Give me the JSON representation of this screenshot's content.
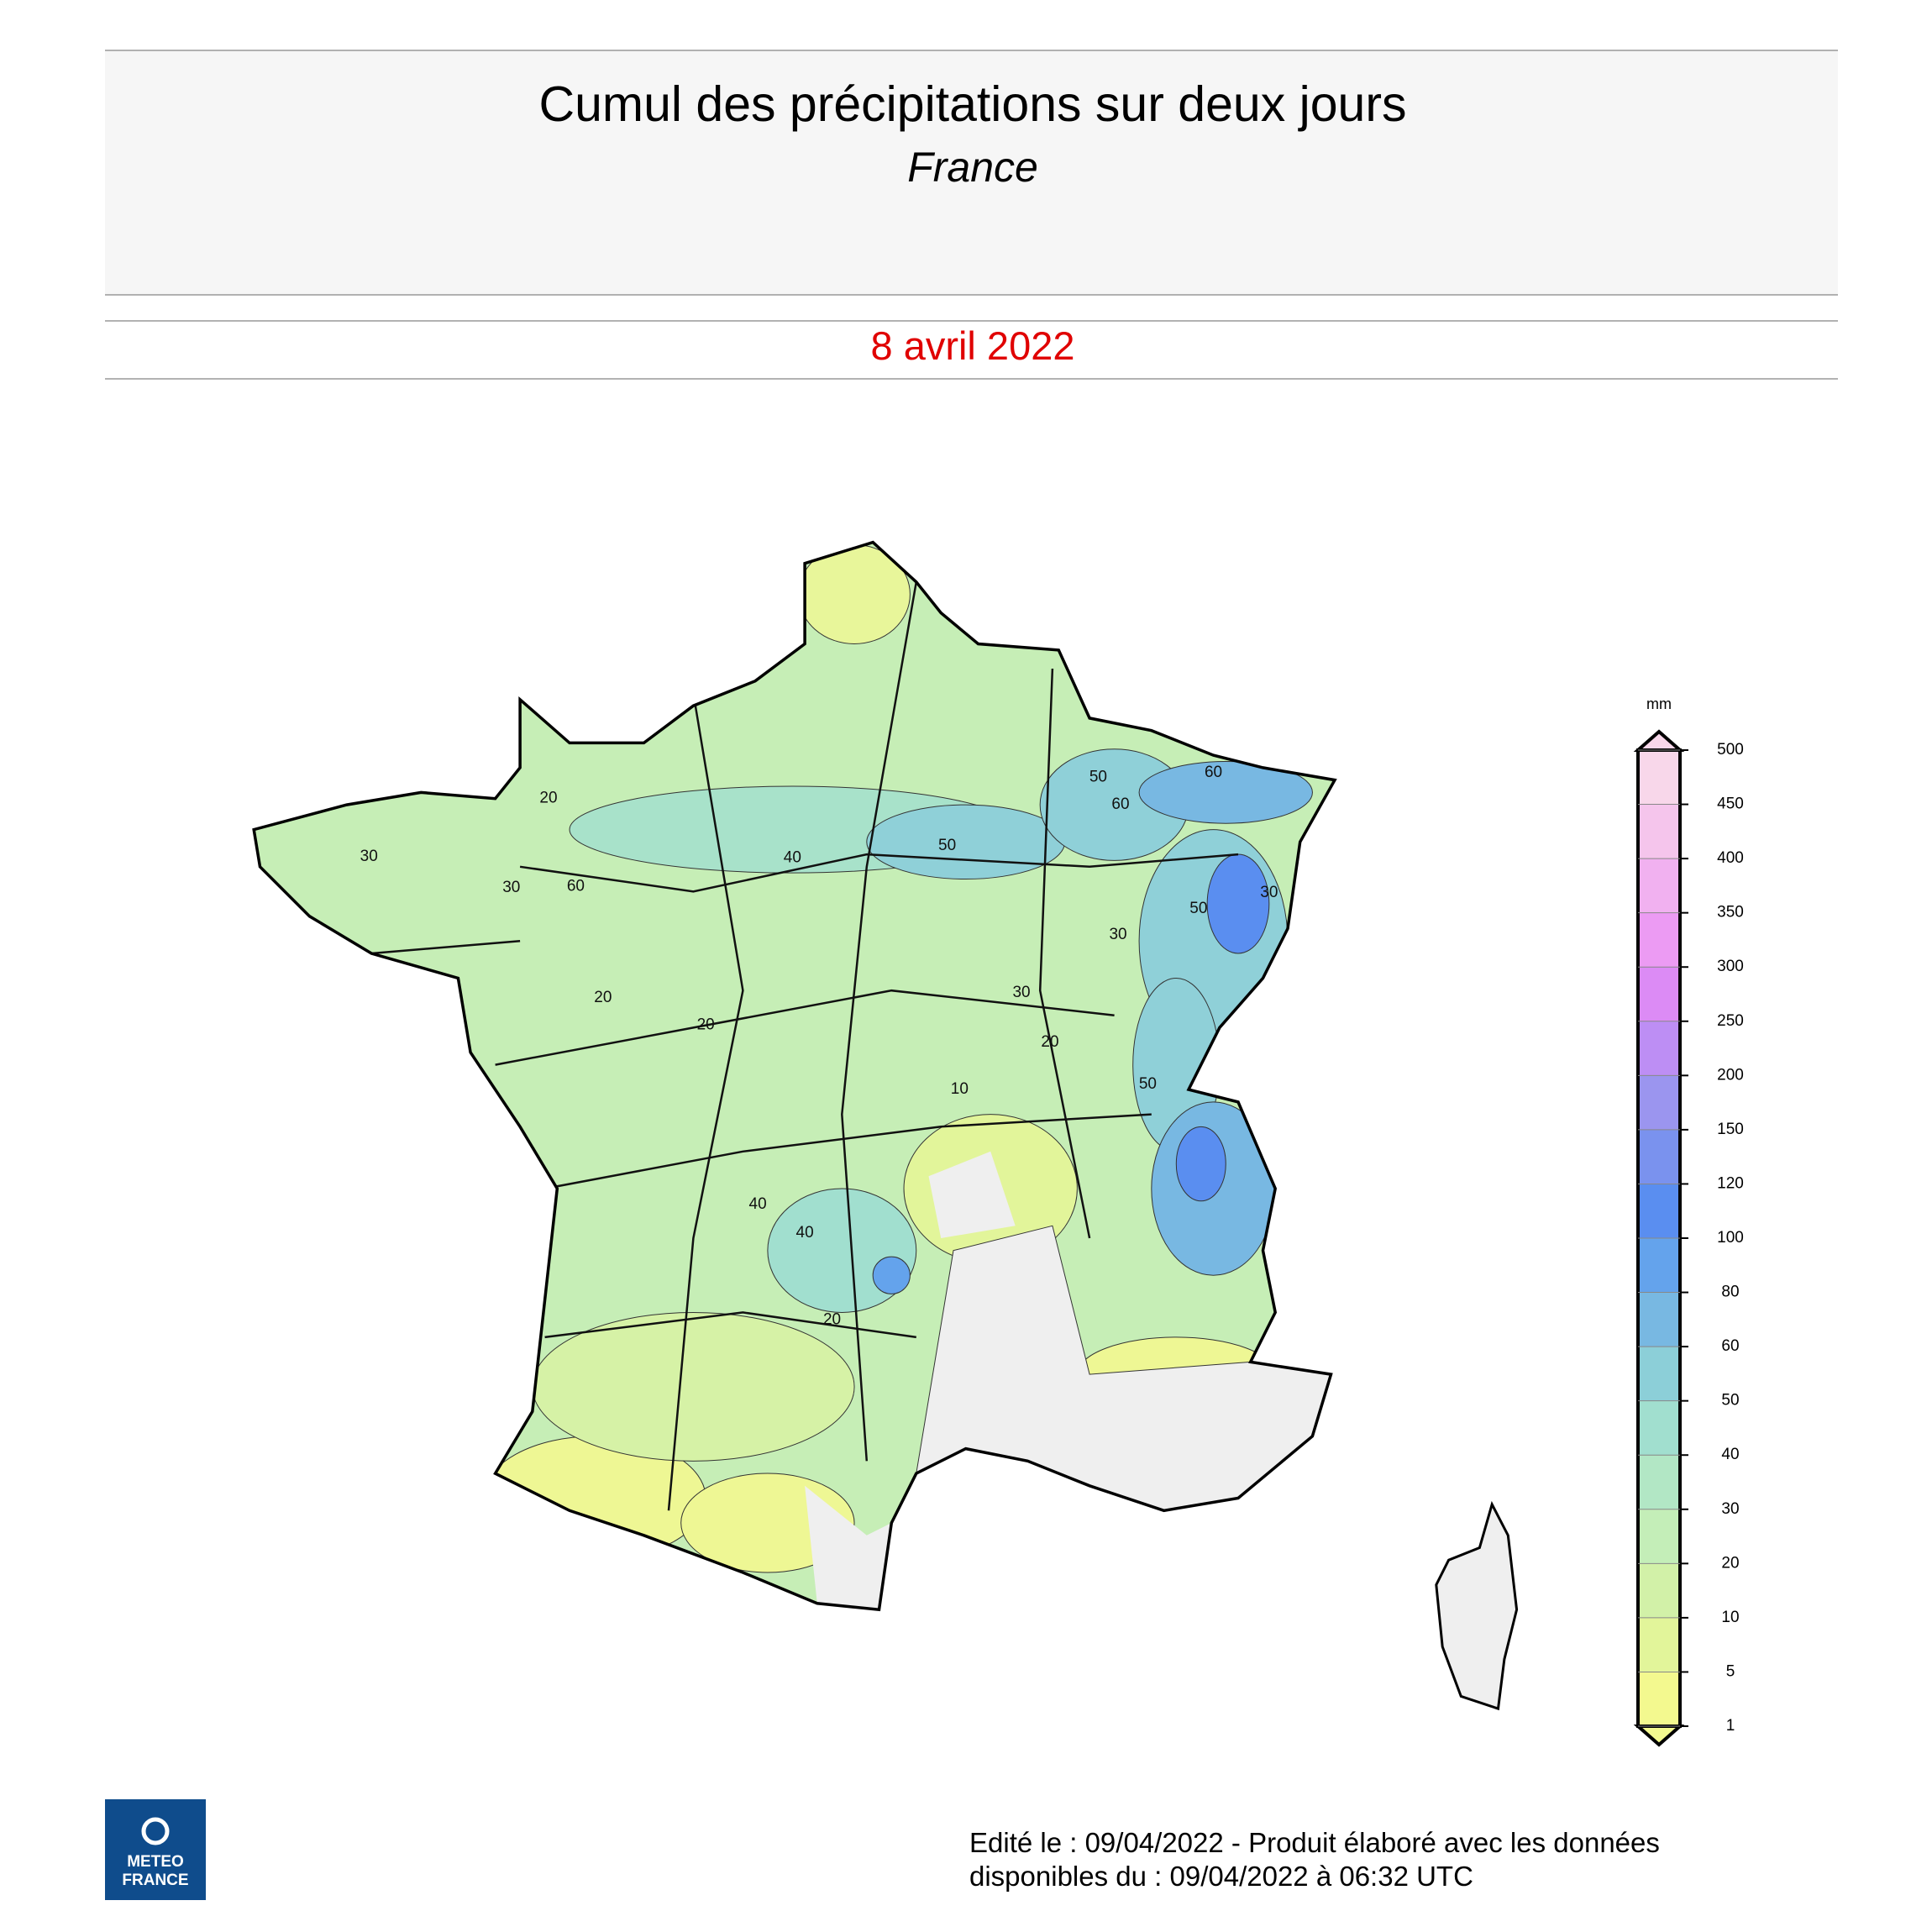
{
  "header": {
    "title": "Cumul des précipitations sur deux jours",
    "subtitle": "France",
    "date": "8 avril 2022"
  },
  "map": {
    "contour_labels": [
      30,
      30,
      60,
      20,
      20,
      40,
      50,
      50,
      60,
      60,
      50,
      30,
      20,
      30,
      10,
      40,
      40,
      20,
      50,
      30,
      20
    ]
  },
  "legend": {
    "unit": "mm",
    "ticks": [
      1,
      5,
      10,
      20,
      30,
      40,
      50,
      60,
      80,
      100,
      120,
      150,
      200,
      250,
      300,
      350,
      400,
      450,
      500
    ],
    "colors": [
      "#f3f98f",
      "#e2f59a",
      "#d2f1a8",
      "#c4eeb8",
      "#b2e7c5",
      "#a1dfcf",
      "#8ccfd8",
      "#78b8e2",
      "#64a3ec",
      "#5a8ef0",
      "#7a92ee",
      "#9b95ef",
      "#bd8ef4",
      "#dc8bf5",
      "#ec9bf3",
      "#f1b1f0",
      "#f5c5ec",
      "#f8d7ea"
    ]
  },
  "logo": {
    "line1": "METEO",
    "line2": "FRANCE"
  },
  "footer": {
    "line1": "Edité le : 09/04/2022 - Produit élaboré avec les données",
    "line2": "disponibles du : 09/04/2022 à 06:32 UTC"
  }
}
